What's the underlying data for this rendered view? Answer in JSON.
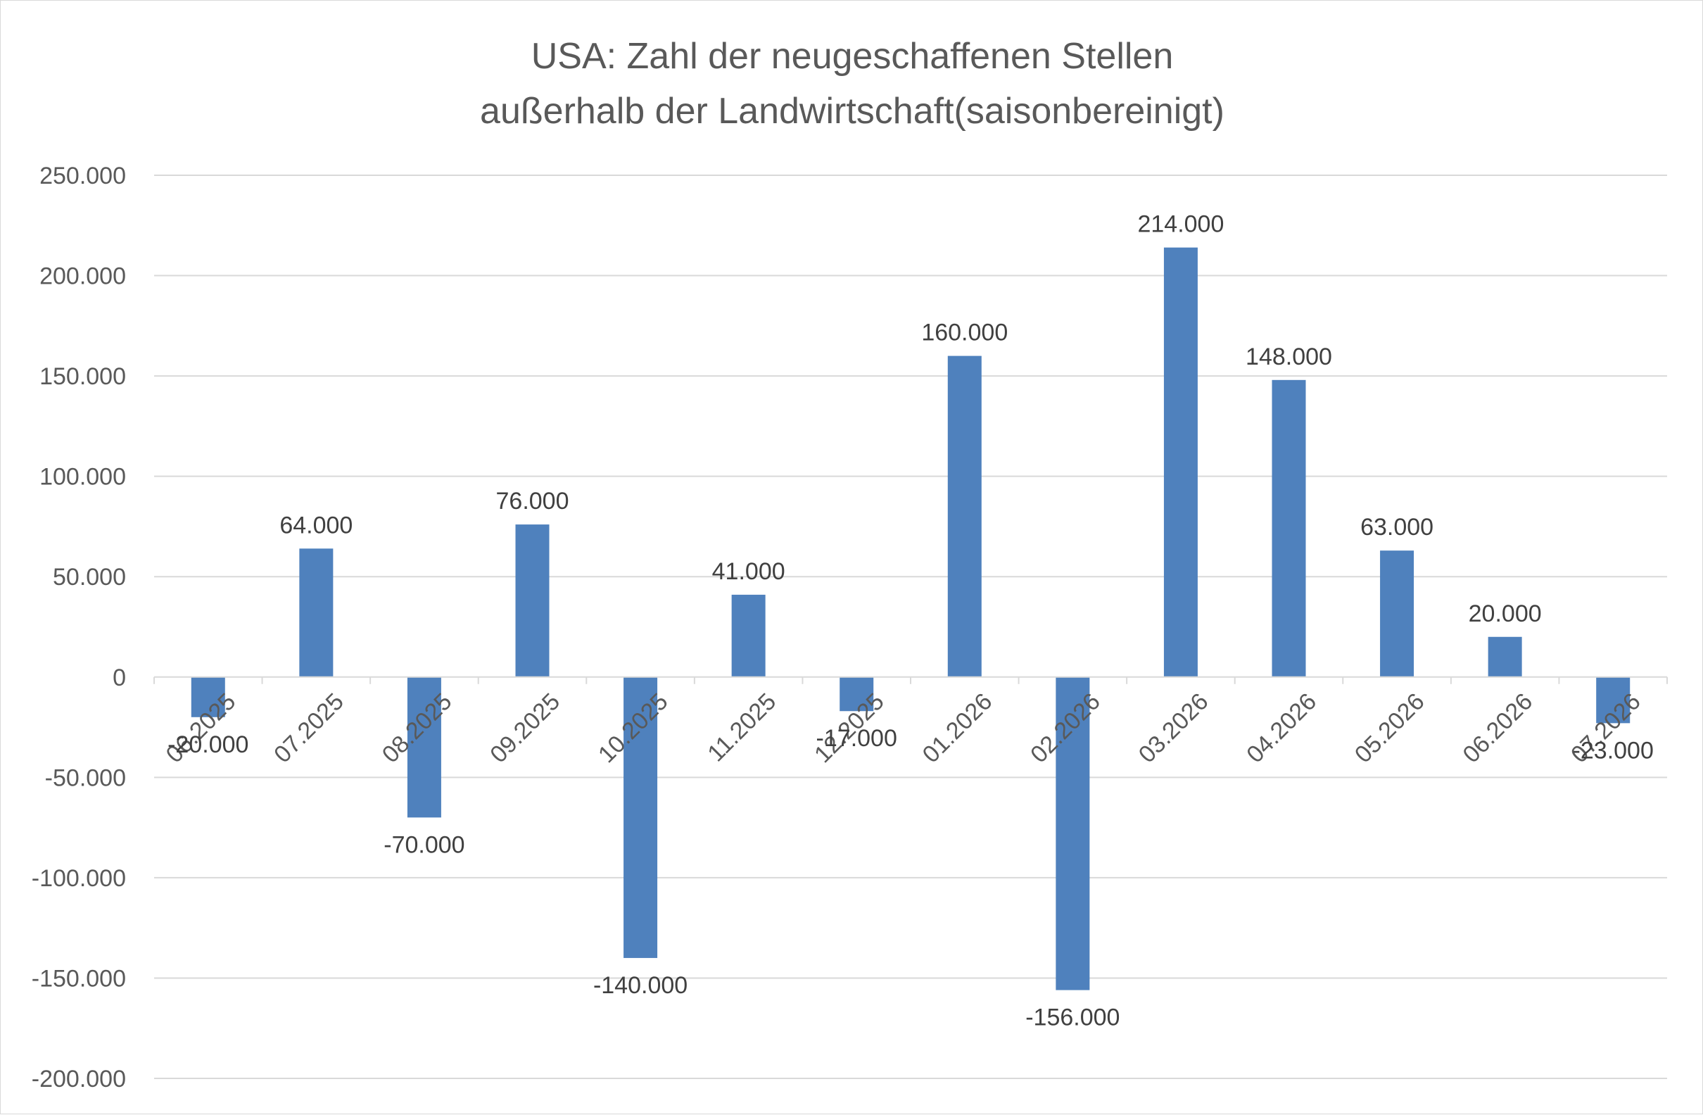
{
  "chart_data": {
    "type": "bar",
    "title": "USA: Zahl der neugeschaffenen Stellen",
    "subtitle": "außerhalb der Landwirtschaft(saisonbereinigt)",
    "xlabel": "",
    "ylabel": "",
    "categories": [
      "06.2025",
      "07.2025",
      "08.2025",
      "09.2025",
      "10.2025",
      "11.2025",
      "12.2025",
      "01.2026",
      "02.2026",
      "03.2026",
      "04.2026",
      "05.2026",
      "06.2026",
      "07.2026"
    ],
    "values": [
      -20000,
      64000,
      -70000,
      76000,
      -140000,
      41000,
      -17000,
      160000,
      -156000,
      214000,
      148000,
      63000,
      20000,
      -23000
    ],
    "data_labels": [
      "-20.000",
      "64.000",
      "-70.000",
      "76.000",
      "-140.000",
      "41.000",
      "-17.000",
      "160.000",
      "-156.000",
      "214.000",
      "148.000",
      "63.000",
      "20.000",
      "-23.000"
    ],
    "ylim": [
      -200000,
      250000
    ],
    "yticks": [
      250000,
      200000,
      150000,
      100000,
      50000,
      0,
      -50000,
      -100000,
      -150000,
      -200000
    ],
    "ytick_labels": [
      "250.000",
      "200.000",
      "150.000",
      "100.000",
      "50.000",
      "0",
      "-50.000",
      "-100.000",
      "-150.000",
      "-200.000"
    ],
    "grid": true,
    "legend": "none",
    "bar_color": "#4f81bd",
    "grid_color": "#d9d9d9"
  }
}
